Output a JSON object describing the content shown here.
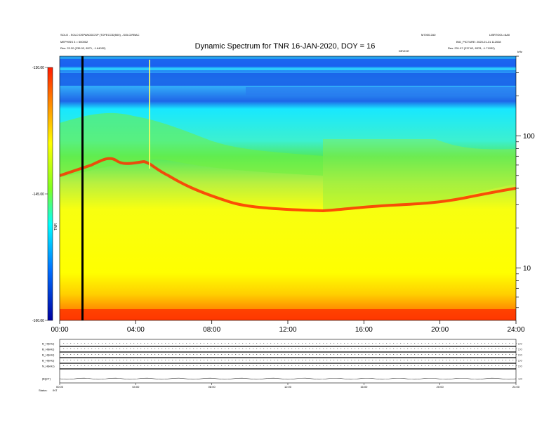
{
  "chart_data": {
    "type": "heatmap",
    "title": "Dynamic Spectrum for TNR 16-JAN-2020, DOY = 16",
    "header": {
      "top_left_1": "SOLO - SOLO DSPANGDCSP (TOFECOD(500), -SOLCIRBAC",
      "top_left_2": "MEPHISS 3 = 500002",
      "top_left_3": "Res:   23.20 (235.02, 8571, -1.64032)",
      "top_right_1": "M7000.2A0",
      "top_right_2": "LIBRTOOL=6A0",
      "top_right_3": "BIG_PICTURE: 2020-01-31 112028",
      "top_right_4": "Res:   231.97 (237.62, 8378, -1.71032)",
      "center_small": "DEVICE",
      "corner_small": "kHz"
    },
    "x_axis": {
      "ticks": [
        "00:00",
        "04:00",
        "08:00",
        "12:00",
        "16:00",
        "20:00",
        "24:00"
      ],
      "range_hours": [
        0,
        24
      ]
    },
    "y_axis_right": {
      "scale": "log",
      "ticks": [
        "100",
        "10"
      ],
      "tick_values": [
        100,
        10
      ],
      "range": [
        4,
        400
      ]
    },
    "colorbar": {
      "ticks": [
        "-130.00",
        "-145.00",
        "-160.00"
      ],
      "tick_values": [
        -130,
        -145,
        -160
      ],
      "label": "TNR",
      "range": [
        -160,
        -130
      ]
    },
    "marker_line_hour": 1.2,
    "panels": {
      "labels": [
        "B_H(kHz)",
        "B_H(kHz)",
        "B_H(kHz)",
        "B_H(kHz)",
        "N_H(kHz)",
        "|B|(nT)"
      ],
      "right_ticks": [
        "2.0",
        "2.0",
        "2.0",
        "2.0",
        "2.0",
        "1.0"
      ],
      "x_ticks": [
        "00:00",
        "04:00",
        "08:00",
        "12:00",
        "16:00",
        "20:00",
        "24:00"
      ],
      "footer_label": "Status:",
      "footer_value": "INT"
    }
  }
}
